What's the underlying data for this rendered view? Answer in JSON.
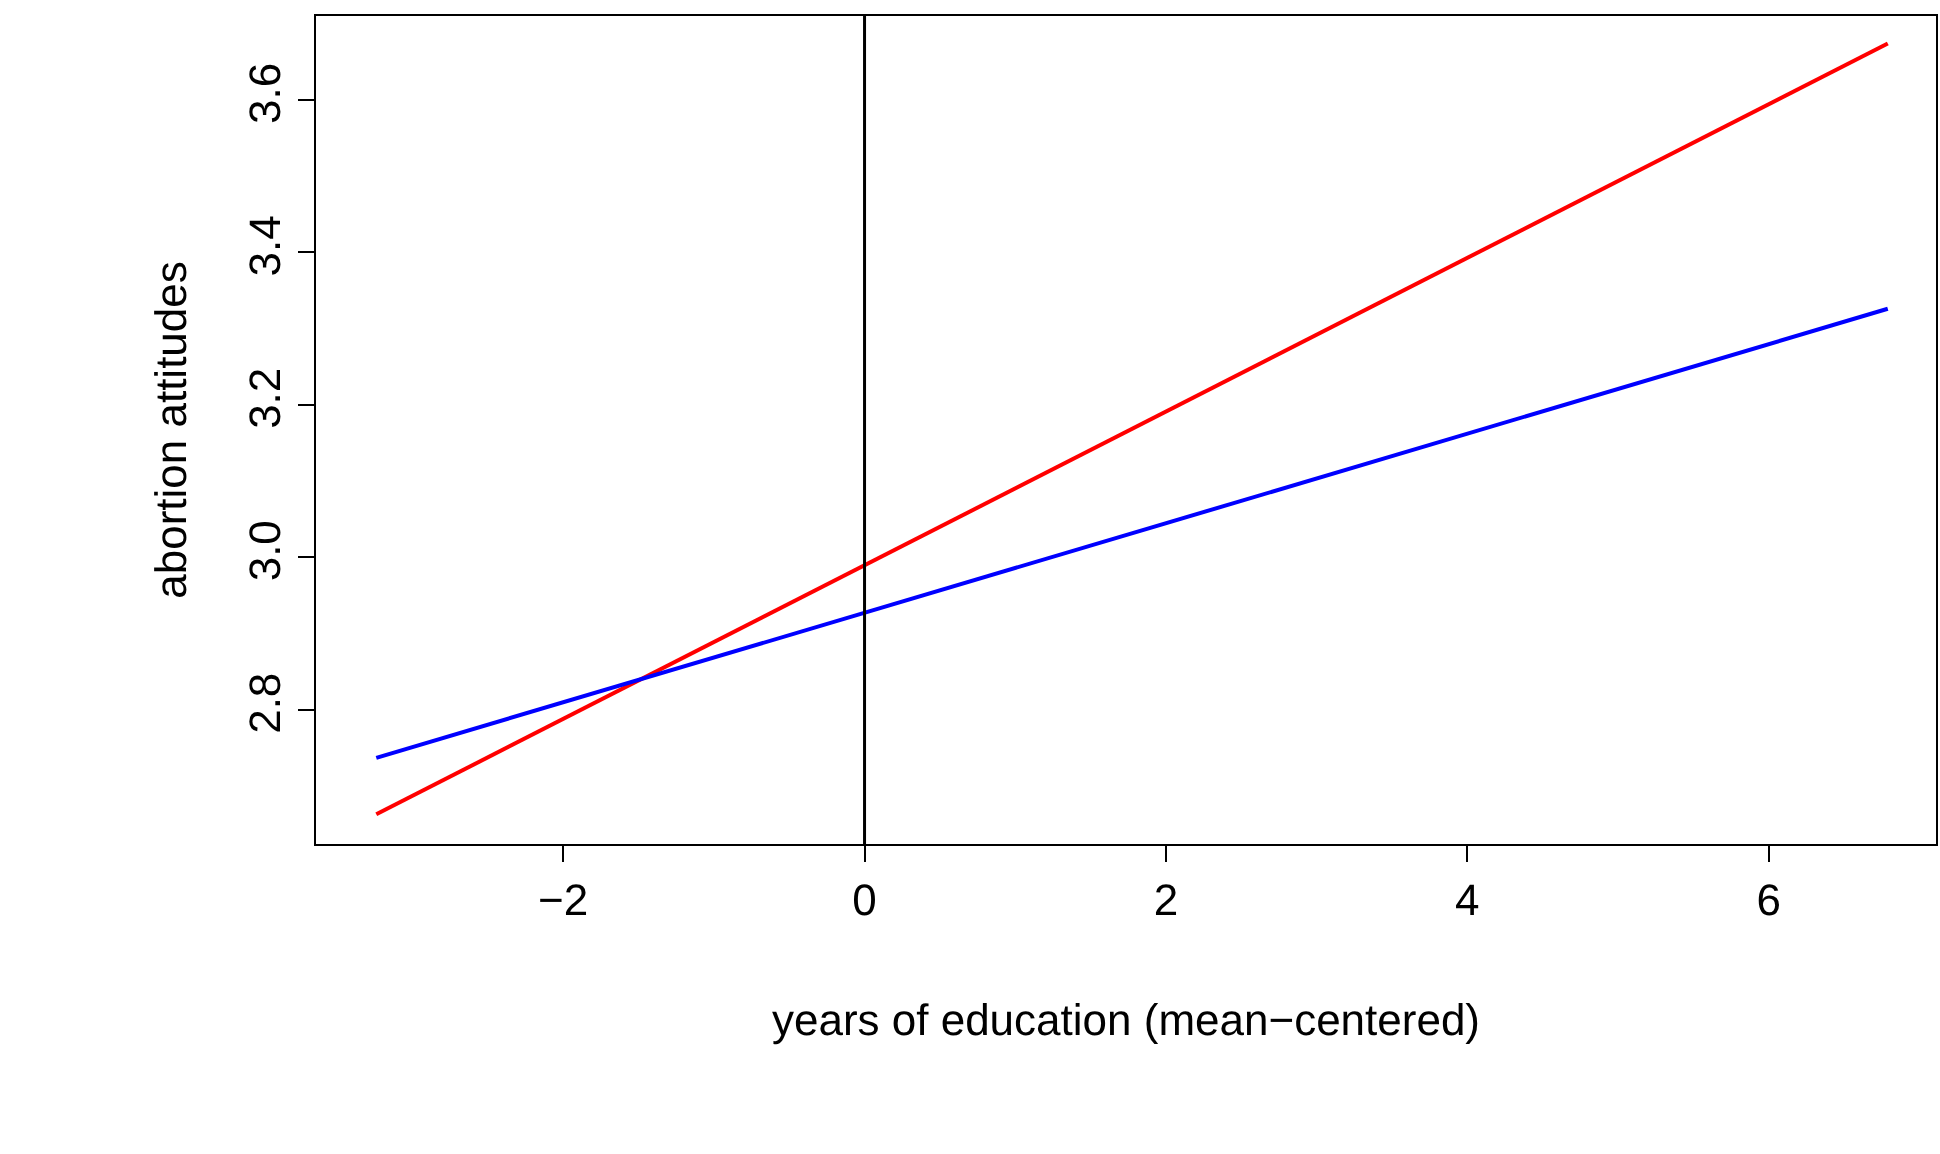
{
  "chart_data": {
    "type": "line",
    "xlabel": "years of education (mean−centered)",
    "ylabel": "abortion attitudes",
    "xlim": [
      -3.64,
      7.11
    ],
    "ylim": [
      2.624,
      3.71
    ],
    "xticks": [
      {
        "value": -2,
        "label": "−2"
      },
      0,
      2,
      4,
      6
    ],
    "yticks": [
      {
        "value": 2.8,
        "label": "2.8"
      },
      {
        "value": 3.0,
        "label": "3.0"
      },
      {
        "value": 3.2,
        "label": "3.2"
      },
      {
        "value": 3.4,
        "label": "3.4"
      },
      {
        "value": 3.6,
        "label": "3.6"
      }
    ],
    "x": [
      -3.24,
      6.79
    ],
    "series": [
      {
        "color": "#ff0000",
        "values": [
          2.663,
          3.674
        ]
      },
      {
        "color": "#0000ff",
        "values": [
          2.737,
          3.326
        ]
      }
    ],
    "ref_lines": [
      {
        "axis": "x",
        "value": 0,
        "color": "#000000"
      }
    ],
    "marker": "none",
    "line_style": "solid"
  }
}
